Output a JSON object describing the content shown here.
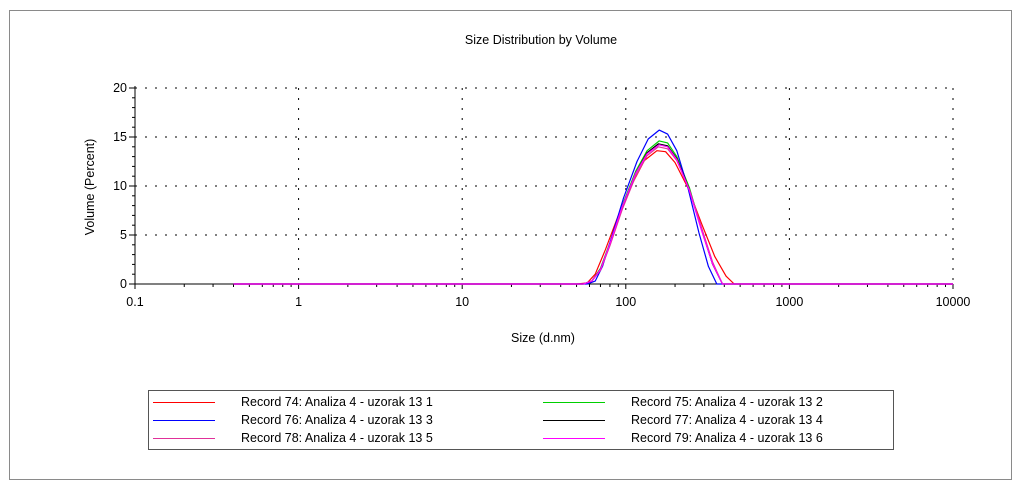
{
  "chart_data": {
    "type": "line",
    "title": "Size Distribution by Volume",
    "xlabel": "Size (d.nm)",
    "ylabel": "Volume (Percent)",
    "x_scale": "log",
    "xlim": [
      0.1,
      10000
    ],
    "ylim": [
      0,
      20
    ],
    "x_ticks": [
      "0.1",
      "1",
      "10",
      "100",
      "1000",
      "10000"
    ],
    "y_ticks": [
      "0",
      "5",
      "10",
      "15",
      "20"
    ],
    "grid": true,
    "legend_position": "bottom",
    "series": [
      {
        "name": "Record 74: Analiza 4 - uzorak 13 1",
        "color": "#ff0000",
        "x": [
          0.4,
          50,
          58,
          65,
          75,
          90,
          110,
          130,
          155,
          175,
          200,
          240,
          290,
          350,
          410,
          460,
          10000
        ],
        "y": [
          0,
          0,
          0.1,
          1.0,
          3.5,
          7.0,
          10.3,
          12.6,
          13.6,
          13.5,
          12.4,
          9.8,
          6.2,
          2.8,
          0.8,
          0,
          0
        ]
      },
      {
        "name": "Record 75: Analiza 4 - uzorak 13 2",
        "color": "#00d000",
        "x": [
          0.4,
          55,
          62,
          70,
          80,
          95,
          115,
          135,
          160,
          180,
          205,
          245,
          290,
          340,
          390,
          10000
        ],
        "y": [
          0,
          0,
          0.3,
          1.6,
          4.2,
          8.0,
          11.5,
          13.6,
          14.6,
          14.4,
          13.0,
          9.8,
          5.6,
          2.0,
          0,
          0
        ]
      },
      {
        "name": "Record 76: Analiza 4 - uzorak 13 3",
        "color": "#0000ff",
        "x": [
          0.4,
          58,
          65,
          72,
          82,
          97,
          117,
          137,
          160,
          180,
          205,
          240,
          280,
          320,
          360,
          10000
        ],
        "y": [
          0,
          0,
          0.3,
          1.8,
          4.8,
          8.8,
          12.5,
          14.8,
          15.7,
          15.3,
          13.6,
          9.8,
          5.2,
          1.8,
          0,
          0
        ]
      },
      {
        "name": "Record 77: Analiza 4 - uzorak 13 4",
        "color": "#000000",
        "x": [
          0.4,
          55,
          62,
          70,
          80,
          95,
          115,
          135,
          158,
          180,
          205,
          245,
          290,
          340,
          390,
          10000
        ],
        "y": [
          0,
          0,
          0.3,
          1.5,
          4.0,
          7.8,
          11.3,
          13.4,
          14.3,
          14.1,
          12.8,
          9.6,
          5.6,
          2.0,
          0,
          0
        ]
      },
      {
        "name": "Record 78: Analiza 4 - uzorak 13 5",
        "color": "#e0309a",
        "x": [
          0.4,
          55,
          62,
          70,
          80,
          95,
          115,
          135,
          158,
          180,
          205,
          245,
          290,
          340,
          390,
          10000
        ],
        "y": [
          0,
          0,
          0.3,
          1.4,
          3.9,
          7.6,
          11.0,
          13.1,
          14.0,
          13.8,
          12.6,
          9.6,
          5.8,
          2.2,
          0,
          0
        ]
      },
      {
        "name": "Record 79: Analiza 4 - uzorak 13 6",
        "color": "#ff00ff",
        "x": [
          0.4,
          55,
          62,
          70,
          80,
          95,
          115,
          135,
          160,
          180,
          205,
          245,
          290,
          340,
          390,
          10000
        ],
        "y": [
          0,
          0,
          0.3,
          1.5,
          4.1,
          7.9,
          11.3,
          13.3,
          14.2,
          14.0,
          12.7,
          9.5,
          5.5,
          2.0,
          0,
          0
        ]
      }
    ]
  }
}
